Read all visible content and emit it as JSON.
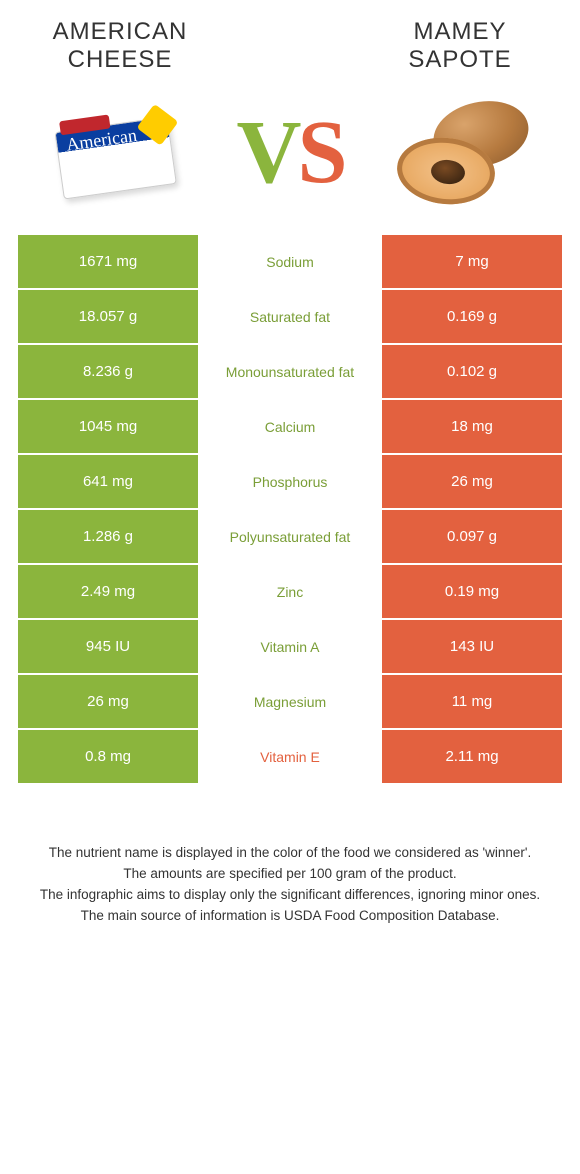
{
  "header": {
    "left_title": "American cheese",
    "right_title": "Mamey Sapote",
    "vs_v": "V",
    "vs_s": "S"
  },
  "colors": {
    "left_bg": "#8bb53d",
    "right_bg": "#e3613f",
    "left_text": "#7a9e37",
    "right_text": "#e3613f"
  },
  "rows": [
    {
      "left": "1671 mg",
      "label": "Sodium",
      "right": "7 mg",
      "winner": "left"
    },
    {
      "left": "18.057 g",
      "label": "Saturated fat",
      "right": "0.169 g",
      "winner": "left"
    },
    {
      "left": "8.236 g",
      "label": "Monounsaturated fat",
      "right": "0.102 g",
      "winner": "left"
    },
    {
      "left": "1045 mg",
      "label": "Calcium",
      "right": "18 mg",
      "winner": "left"
    },
    {
      "left": "641 mg",
      "label": "Phosphorus",
      "right": "26 mg",
      "winner": "left"
    },
    {
      "left": "1.286 g",
      "label": "Polyunsaturated fat",
      "right": "0.097 g",
      "winner": "left"
    },
    {
      "left": "2.49 mg",
      "label": "Zinc",
      "right": "0.19 mg",
      "winner": "left"
    },
    {
      "left": "945 IU",
      "label": "Vitamin A",
      "right": "143 IU",
      "winner": "left"
    },
    {
      "left": "26 mg",
      "label": "Magnesium",
      "right": "11 mg",
      "winner": "left"
    },
    {
      "left": "0.8 mg",
      "label": "Vitamin E",
      "right": "2.11 mg",
      "winner": "right"
    }
  ],
  "footnotes": [
    "The nutrient name is displayed in the color of the food we considered as 'winner'.",
    "The amounts are specified per 100 gram of the product.",
    "The infographic aims to display only the significant differences, ignoring minor ones.",
    "The main source of information is USDA Food Composition Database."
  ]
}
